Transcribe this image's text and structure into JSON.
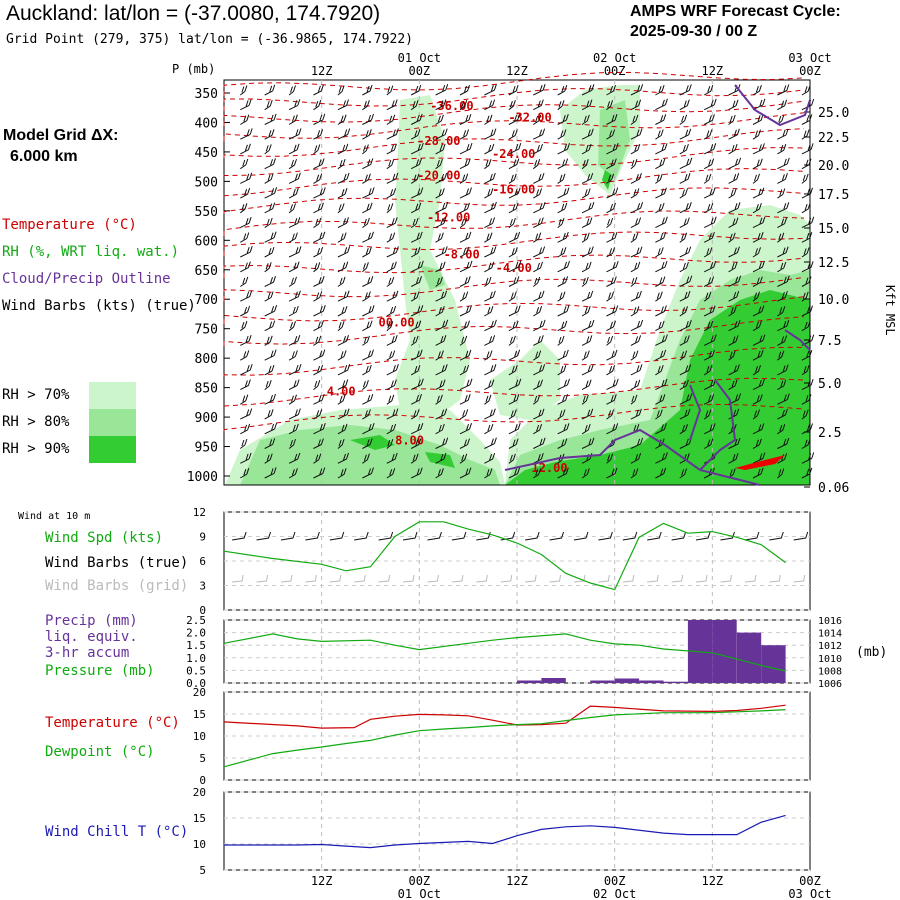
{
  "header": {
    "title": "Auckland:  lat/lon = (-37.0080, 174.7920)",
    "subtitle": "Grid Point (279, 375) lat/lon = (-36.9865, 174.7922)",
    "cycle_label": "AMPS WRF Forecast Cycle:",
    "cycle_value": "2025-09-30 / 00  Z"
  },
  "left_panel": {
    "model_grid_label": "Model Grid ΔX:",
    "model_grid_value": "6.000 km",
    "legend_temperature": "Temperature (°C)",
    "legend_rh": "RH (%, WRT liq. wat.)",
    "legend_cloud": "Cloud/Precip Outline",
    "legend_wind": "Wind Barbs (kts) (true)",
    "rh_gt70": "RH > 70%",
    "rh_gt80": "RH > 80%",
    "rh_gt90": "RH > 90%"
  },
  "colors": {
    "temperature": "#cc0000",
    "rh": "#11aa11",
    "cloud": "#663399",
    "rh70": "#ccf5cc",
    "rh80": "#99e699",
    "rh90": "#33cc33",
    "wind_chill": "#1a1ab3",
    "precip": "#663399"
  },
  "time_axis": {
    "top_hours": [
      "12Z",
      "00Z",
      "12Z",
      "00Z",
      "12Z",
      "00Z"
    ],
    "top_dates": [
      "01 Oct",
      "02 Oct",
      "03 Oct"
    ],
    "bottom_hours": [
      "12Z",
      "00Z",
      "12Z",
      "00Z",
      "12Z",
      "00Z"
    ],
    "bottom_dates": [
      "01 Oct",
      "02 Oct",
      "03 Oct"
    ]
  },
  "chart_data": [
    {
      "type": "heatmap",
      "name_hint": "time-height cross section",
      "ylabel_left": "P (mb)",
      "ylabel_right": "Kft MSL",
      "pressure_levels": [
        350,
        400,
        450,
        500,
        550,
        600,
        650,
        700,
        750,
        800,
        850,
        900,
        950,
        1000
      ],
      "height_ticks": [
        "25.0",
        "22.5",
        "20.0",
        "17.5",
        "15.0",
        "12.5",
        "10.0",
        "7.5",
        "5.0",
        "2.5",
        "0.06"
      ],
      "x_hours": [
        6,
        12,
        18,
        24,
        30,
        36,
        42,
        48
      ],
      "temperature_labels": [
        {
          "text": "-36.00",
          "hour": 14,
          "p": 370
        },
        {
          "text": "-32.00",
          "hour": 18.8,
          "p": 390
        },
        {
          "text": "-28.00",
          "hour": 13.2,
          "p": 430
        },
        {
          "text": "-24.00",
          "hour": 17.8,
          "p": 452
        },
        {
          "text": "-20.00",
          "hour": 13.2,
          "p": 488
        },
        {
          "text": "-16.00",
          "hour": 17.8,
          "p": 512
        },
        {
          "text": "-12.00",
          "hour": 13.8,
          "p": 560
        },
        {
          "text": "-8.00",
          "hour": 14.6,
          "p": 622
        },
        {
          "text": "-4.00",
          "hour": 17.8,
          "p": 645
        },
        {
          "text": "00.00",
          "hour": 10.6,
          "p": 738
        },
        {
          "text": "4.00",
          "hour": 7.2,
          "p": 855
        },
        {
          "text": "8.00",
          "hour": 11.4,
          "p": 938
        },
        {
          "text": "12.00",
          "hour": 20.0,
          "p": 985
        }
      ]
    },
    {
      "type": "line",
      "title": "Wind at 10 m",
      "legend": [
        "Wind Spd (kts)",
        "Wind Barbs (true)",
        "Wind Barbs (grid)"
      ],
      "y_ticks": [
        0,
        3,
        6,
        9,
        12
      ],
      "ylim": [
        0,
        12
      ],
      "series": [
        {
          "name": "Wind Spd (kts)",
          "x": [
            0,
            3,
            6,
            7.5,
            9,
            10.5,
            12,
            13.5,
            15,
            16.5,
            18,
            19.5,
            21,
            22.5,
            24,
            25.5,
            27,
            28.5,
            30,
            31.5,
            33,
            34.5
          ],
          "values": [
            7.2,
            6.3,
            5.6,
            4.8,
            5.3,
            9.0,
            10.8,
            10.8,
            9.9,
            9.2,
            8.2,
            6.8,
            4.5,
            3.3,
            2.5,
            8.9,
            10.6,
            9.4,
            9.6,
            8.9,
            8.0,
            5.8
          ]
        }
      ]
    },
    {
      "type": "bar",
      "legend": [
        "Precip (mm)",
        "liq. equiv.",
        "3-hr accum",
        "Pressure (mb)"
      ],
      "y_ticks_left": [
        "0.0",
        "0.5",
        "1.0",
        "1.5",
        "2.0",
        "2.5"
      ],
      "y_ticks_right": [
        "1006",
        "1008",
        "1010",
        "1012",
        "1014",
        "1016"
      ],
      "ylabel_right": "(mb)",
      "ylim": [
        0,
        2.5
      ],
      "precip": {
        "x": [
          19.5,
          21,
          22.5,
          24,
          25.5,
          27,
          28.5,
          30,
          31.5,
          33,
          34.5
        ],
        "values": [
          0.1,
          0.2,
          0.0,
          0.1,
          0.18,
          0.1,
          0.05,
          2.5,
          2.5,
          2.0,
          1.5
        ]
      },
      "series": [
        {
          "name": "Pressure (mb)",
          "x": [
            0,
            3,
            4.5,
            6,
            9,
            10.5,
            12,
            15,
            16.5,
            18,
            21,
            22.5,
            24,
            25.5,
            27,
            30,
            31.5,
            33,
            34.5
          ],
          "values": [
            1012.3,
            1013.8,
            1013.0,
            1012.6,
            1012.8,
            1012.0,
            1011.3,
            1012.3,
            1012.8,
            1013.2,
            1013.8,
            1012.8,
            1012.2,
            1012.0,
            1011.4,
            1010.8,
            1009.8,
            1008.8,
            1007.9
          ]
        }
      ]
    },
    {
      "type": "line",
      "legend": [
        "Temperature (°C)",
        "Dewpoint (°C)"
      ],
      "y_ticks": [
        0,
        5,
        10,
        15,
        20
      ],
      "ylim": [
        0,
        20
      ],
      "series": [
        {
          "name": "Temperature (°C)",
          "x": [
            0,
            4.5,
            6,
            8,
            9,
            10.5,
            12,
            13.5,
            15,
            16.5,
            18,
            19.5,
            21,
            22.5,
            24,
            27,
            30,
            31.5,
            33,
            34.5
          ],
          "values": [
            13.2,
            12.3,
            11.8,
            11.9,
            13.8,
            14.5,
            14.9,
            14.8,
            14.6,
            13.6,
            12.5,
            12.6,
            12.9,
            16.8,
            16.5,
            15.7,
            15.6,
            15.8,
            16.3,
            17.0
          ]
        },
        {
          "name": "Dewpoint (°C)",
          "x": [
            0,
            3,
            4.5,
            6,
            7.5,
            9,
            10.5,
            12,
            13.5,
            15,
            16.5,
            18,
            19.5,
            21,
            22.5,
            24,
            27,
            30,
            31.5,
            33,
            34.5
          ],
          "values": [
            3.0,
            6.0,
            6.8,
            7.5,
            8.3,
            9.0,
            10.2,
            11.2,
            11.6,
            11.9,
            12.3,
            12.6,
            12.8,
            13.5,
            14.2,
            14.8,
            15.3,
            15.3,
            15.5,
            15.7,
            16.0
          ]
        }
      ]
    },
    {
      "type": "line",
      "legend": [
        "Wind Chill T (°C)"
      ],
      "y_ticks": [
        5,
        10,
        15,
        20
      ],
      "ylim": [
        5,
        20
      ],
      "series": [
        {
          "name": "Wind Chill T (°C)",
          "x": [
            0,
            4.5,
            6,
            7.5,
            9,
            10.5,
            12,
            15,
            16.5,
            18,
            19.5,
            21,
            22.5,
            24,
            27,
            28.5,
            30,
            31.5,
            33,
            34.5
          ],
          "values": [
            9.8,
            9.8,
            9.9,
            9.6,
            9.3,
            9.8,
            10.1,
            10.5,
            10.1,
            11.6,
            12.8,
            13.3,
            13.5,
            13.2,
            12.1,
            11.8,
            11.8,
            11.8,
            14.2,
            15.5
          ]
        }
      ]
    }
  ]
}
